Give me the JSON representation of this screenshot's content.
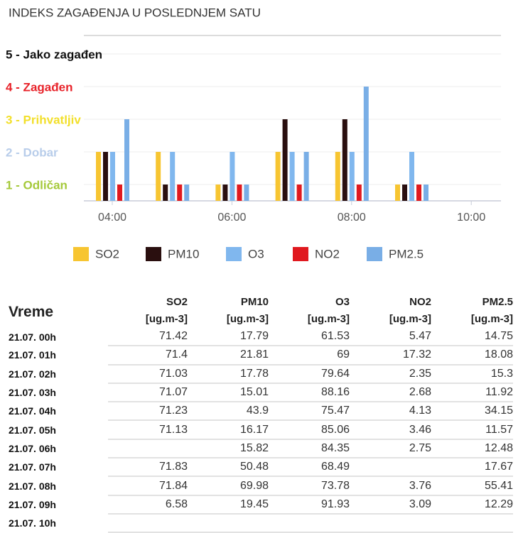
{
  "header": {
    "title": "INDEKS ZAGAĐENJA U POSLEDNJEM SATU"
  },
  "chart_data": {
    "type": "bar",
    "categories": [
      "04:00",
      null,
      "06:00",
      null,
      "08:00",
      null,
      "10:00"
    ],
    "series": [
      {
        "name": "SO2",
        "color": "#f7c531",
        "values": [
          2,
          2,
          1,
          2,
          2,
          1,
          null
        ]
      },
      {
        "name": "PM10",
        "color": "#2a0f0f",
        "values": [
          2,
          1,
          1,
          3,
          3,
          1,
          null
        ]
      },
      {
        "name": "O3",
        "color": "#80b7ee",
        "values": [
          2,
          2,
          2,
          2,
          2,
          2,
          null
        ]
      },
      {
        "name": "NO2",
        "color": "#e0191f",
        "values": [
          1,
          1,
          1,
          1,
          1,
          1,
          null
        ]
      },
      {
        "name": "PM2.5",
        "color": "#79aee6",
        "values": [
          3,
          1,
          1,
          2,
          4,
          1,
          null
        ]
      }
    ],
    "ylim": [
      0.5,
      5.5
    ],
    "yticks": [
      {
        "value": 1,
        "label": "1 - Odličan"
      },
      {
        "value": 2,
        "label": "2 - Dobar"
      },
      {
        "value": 3,
        "label": "3 - Prihvatljiv"
      },
      {
        "value": 4,
        "label": "4 - Zagađen"
      },
      {
        "value": 5,
        "label": "5 - Jako zagađen"
      }
    ],
    "ytick_colors": [
      "#a5c93a",
      "#b8cdea",
      "#f2df2a",
      "#e8232a",
      "#111111"
    ],
    "grid": true,
    "legend": "bottom"
  },
  "table": {
    "columns": [
      {
        "name": "Vreme"
      },
      {
        "name": "SO2",
        "unit": "[ug.m-3]"
      },
      {
        "name": "PM10",
        "unit": "[ug.m-3]"
      },
      {
        "name": "O3",
        "unit": "[ug.m-3]"
      },
      {
        "name": "NO2",
        "unit": "[ug.m-3]"
      },
      {
        "name": "PM2.5",
        "unit": "[ug.m-3]"
      }
    ],
    "rows": [
      [
        "21.07. 00h",
        71.42,
        17.79,
        61.53,
        5.47,
        14.75
      ],
      [
        "21.07. 01h",
        71.4,
        21.81,
        69,
        17.32,
        18.08
      ],
      [
        "21.07. 02h",
        71.03,
        17.78,
        79.64,
        2.35,
        15.3
      ],
      [
        "21.07. 03h",
        71.07,
        15.01,
        88.16,
        2.68,
        11.92
      ],
      [
        "21.07. 04h",
        71.23,
        43.9,
        75.47,
        4.13,
        34.15
      ],
      [
        "21.07. 05h",
        71.13,
        16.17,
        85.06,
        3.46,
        11.57
      ],
      [
        "21.07. 06h",
        null,
        15.82,
        84.35,
        2.75,
        12.48
      ],
      [
        "21.07. 07h",
        71.83,
        50.48,
        68.49,
        null,
        17.67
      ],
      [
        "21.07. 08h",
        71.84,
        69.98,
        73.78,
        3.76,
        55.41
      ],
      [
        "21.07. 09h",
        6.58,
        19.45,
        91.93,
        3.09,
        12.29
      ],
      [
        "21.07. 10h",
        null,
        null,
        null,
        null,
        null
      ]
    ]
  }
}
